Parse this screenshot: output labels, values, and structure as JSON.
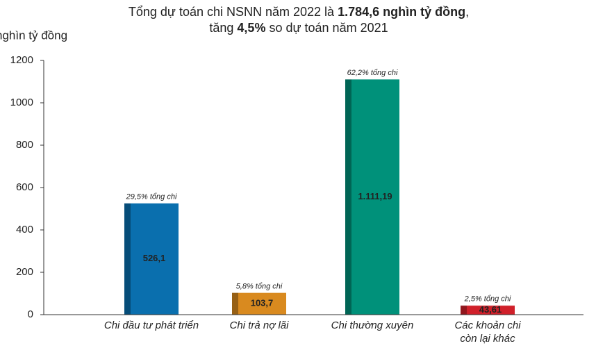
{
  "chart_data": {
    "type": "bar",
    "title": [
      [
        "Tổng dự toán chi NSNN năm 2022 là ",
        "1.784,6 nghìn tỷ đồng",
        ","
      ],
      [
        "tăng ",
        "4,5%",
        " so dự toán năm 2021"
      ]
    ],
    "y_label": "nghìn tỷ đồng",
    "categories": [
      [
        "Chi đầu tư phát triển"
      ],
      [
        "Chi trả nợ lãi"
      ],
      [
        "Chi thường xuyên"
      ],
      [
        "Các khoản chi",
        "còn lại khác"
      ]
    ],
    "values": [
      526.1,
      103.7,
      1111.19,
      43.61
    ],
    "value_labels": [
      "526,1",
      "103,7",
      "1.111,19",
      "43,61"
    ],
    "share_labels": [
      "29,5% tổng chi",
      "5,8% tổng chi",
      "62,2% tổng chi",
      "2,5% tổng chi"
    ],
    "colors": [
      "#0a6fae",
      "#d98a1f",
      "#00917a",
      "#d0202a"
    ],
    "ylim": [
      0,
      1200
    ],
    "yticks": [
      0,
      200,
      400,
      600,
      800,
      1000,
      1200
    ],
    "grid": false
  }
}
